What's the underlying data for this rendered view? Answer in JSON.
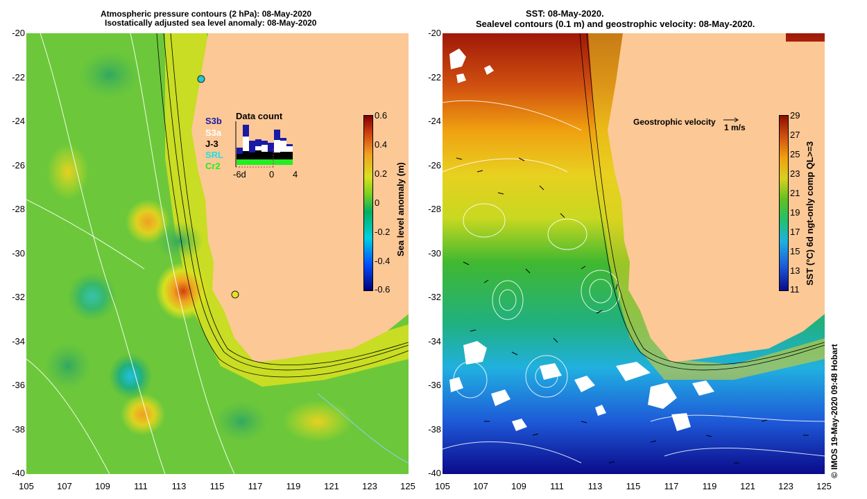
{
  "left_panel": {
    "title_line1": "Atmospheric pressure contours (2 hPa): 08-May-2020",
    "title_line2": "Isostatically adjusted sea level anomaly: 08-May-2020",
    "colorbar_label": "Sea level anomaly (m)",
    "colorbar_ticks": [
      "0.6",
      "0.4",
      "0.2",
      "0",
      "-0.2",
      "-0.4",
      "-0.6"
    ],
    "data_count": {
      "title": "Data count",
      "satellites": [
        {
          "name": "S3b",
          "color": "#1a1aa6"
        },
        {
          "name": "S3a",
          "color": "#ffffff"
        },
        {
          "name": "J-3",
          "color": "#000000"
        },
        {
          "name": "SRL",
          "color": "#22e0e0"
        },
        {
          "name": "Cr2",
          "color": "#22ee22"
        }
      ],
      "overlap_label": "S3b",
      "overlap_label2": "S3b",
      "x_ticks": [
        "-6d",
        "0",
        "4"
      ]
    }
  },
  "right_panel": {
    "title_line1": "SST: 08-May-2020.",
    "title_line2": "Sealevel contours (0.1 m) and geostrophic velocity: 08-May-2020.",
    "velocity_label": "Geostrophic velocity",
    "velocity_scale": "1 m/s",
    "colorbar_label": "SST (°C) 6d ngt-only comp QL>=3",
    "colorbar_ticks": [
      "29",
      "27",
      "25",
      "23",
      "21",
      "19",
      "17",
      "15",
      "13",
      "11"
    ]
  },
  "y_ticks": [
    "-20",
    "-22",
    "-24",
    "-26",
    "-28",
    "-30",
    "-32",
    "-34",
    "-36",
    "-38",
    "-40"
  ],
  "x_ticks": [
    "105",
    "107",
    "109",
    "111",
    "113",
    "115",
    "117",
    "119",
    "121",
    "123",
    "125"
  ],
  "copyright": "© IMOS 19-May-2020 09:48 Hobart",
  "colors": {
    "land": "#fcc896",
    "sla_scale": [
      "#00007a",
      "#0050ff",
      "#00d0e0",
      "#00b060",
      "#7ad020",
      "#d8e020",
      "#f0a020",
      "#d04010",
      "#800000"
    ],
    "sst_scale": [
      "#0a0a8a",
      "#1e5ad8",
      "#20b0e0",
      "#20c070",
      "#60c020",
      "#d8d020",
      "#f0a010",
      "#d05010",
      "#8a1000"
    ]
  }
}
